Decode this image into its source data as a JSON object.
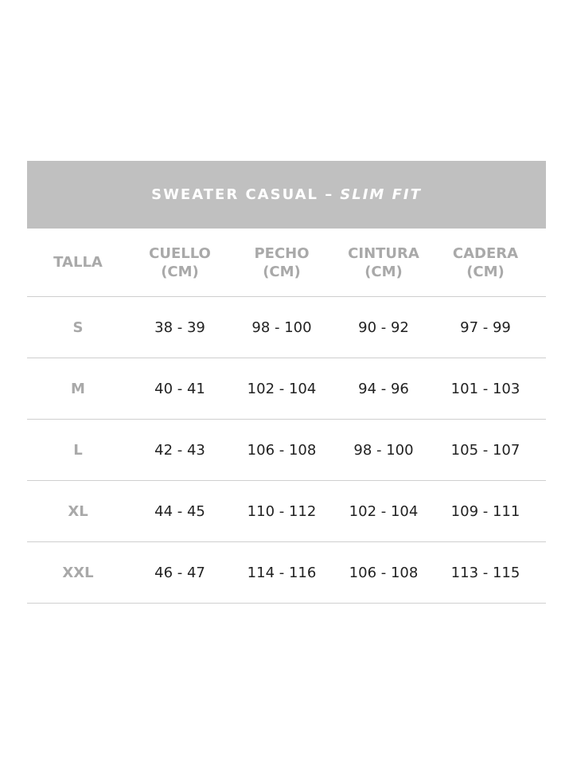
{
  "title": {
    "main": "SWEATER CASUAL –",
    "fit": "SLIM FIT"
  },
  "columns": [
    {
      "line1": "TALLA",
      "line2": ""
    },
    {
      "line1": "CUELLO",
      "line2": "(CM)"
    },
    {
      "line1": "PECHO",
      "line2": "(CM)"
    },
    {
      "line1": "CINTURA",
      "line2": "(CM)"
    },
    {
      "line1": "CADERA",
      "line2": "(CM)"
    }
  ],
  "rows": [
    [
      "S",
      "38 - 39",
      "98 - 100",
      "90 - 92",
      "97 - 99"
    ],
    [
      "M",
      "40 - 41",
      "102 - 104",
      "94 - 96",
      "101 - 103"
    ],
    [
      "L",
      "42 - 43",
      "106 - 108",
      "98 - 100",
      "105 - 107"
    ],
    [
      "XL",
      "44 - 45",
      "110 - 112",
      "102 - 104",
      "109 - 111"
    ],
    [
      "XXL",
      "46 - 47",
      "114 - 116",
      "106 - 108",
      "113 - 115"
    ]
  ],
  "colors": {
    "header_bg": "#c0c0c0",
    "label": "#a9a9a9",
    "text": "#222222"
  }
}
